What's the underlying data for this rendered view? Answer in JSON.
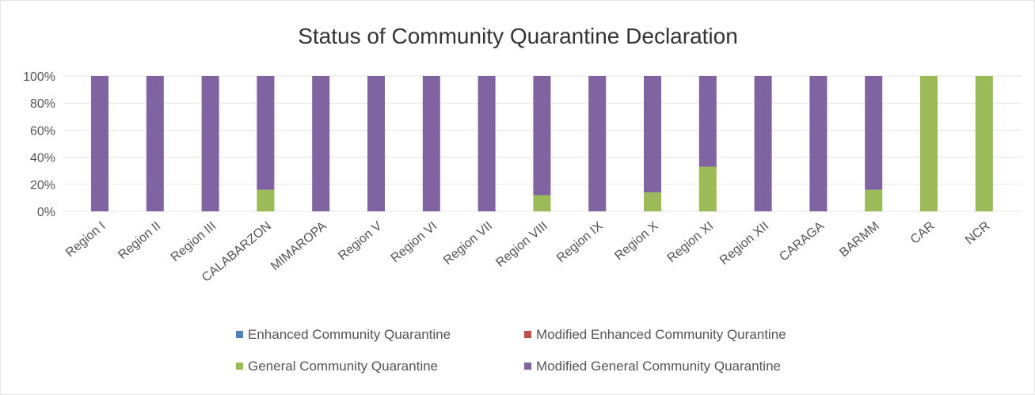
{
  "chart_data": {
    "type": "bar",
    "stacked": true,
    "title": "Status of Community Quarantine Declaration",
    "xlabel": "",
    "ylabel": "",
    "ylim": [
      0,
      100
    ],
    "y_ticks": [
      "0%",
      "20%",
      "40%",
      "60%",
      "80%",
      "100%"
    ],
    "grid": "horizontal",
    "legend_position": "bottom",
    "categories": [
      "Region I",
      "Region II",
      "Region III",
      "CALABARZON",
      "MIMAROPA",
      "Region V",
      "Region VI",
      "Region VII",
      "Region VIII",
      "Region IX",
      "Region X",
      "Region XI",
      "Region XII",
      "CARAGA",
      "BARMM",
      "CAR",
      "NCR"
    ],
    "series": [
      {
        "name": "Enhanced Community Quarantine",
        "color": "#4f81bd",
        "values": [
          0,
          0,
          0,
          0,
          0,
          0,
          0,
          0,
          0,
          0,
          0,
          0,
          0,
          0,
          0,
          0,
          0
        ]
      },
      {
        "name": "Modified Enhanced Community Qurantine",
        "color": "#c0504d",
        "values": [
          0,
          0,
          0,
          0,
          0,
          0,
          0,
          0,
          0,
          0,
          0,
          0,
          0,
          0,
          0,
          0,
          0
        ]
      },
      {
        "name": "General Community Quarantine",
        "color": "#9bbb59",
        "values": [
          0,
          0,
          0,
          16,
          0,
          0,
          0,
          0,
          12,
          0,
          14,
          33,
          0,
          0,
          16,
          100,
          100
        ]
      },
      {
        "name": "Modified General Community Quarantine",
        "color": "#8064a2",
        "values": [
          100,
          100,
          100,
          84,
          100,
          100,
          100,
          100,
          88,
          100,
          86,
          67,
          100,
          100,
          84,
          0,
          0
        ]
      }
    ]
  }
}
